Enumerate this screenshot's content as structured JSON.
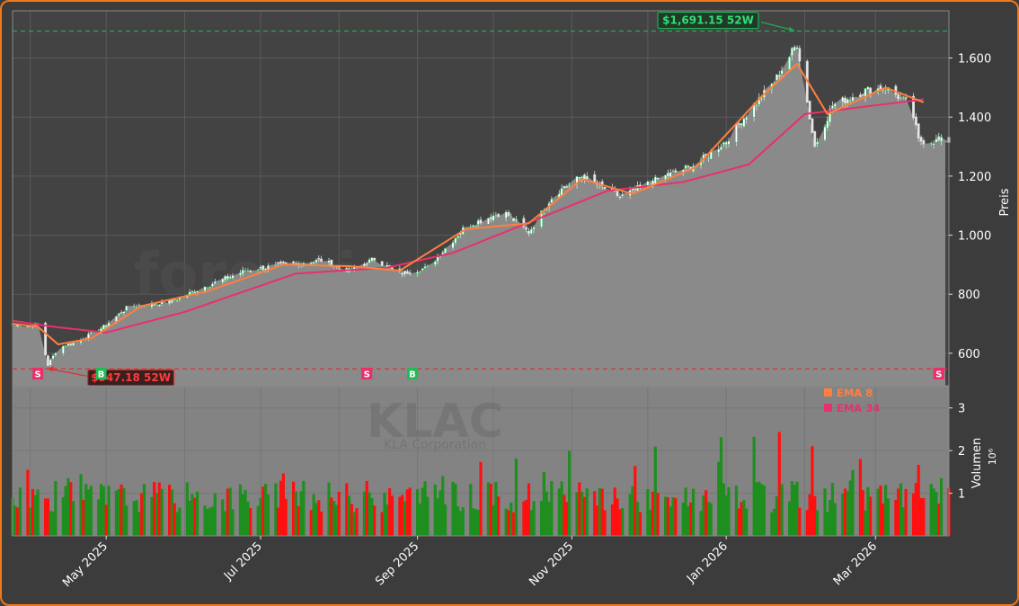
{
  "chart_data": {
    "type": "candlestick",
    "ticker": "KLAC",
    "company": "KLA Corporation",
    "watermark": "forexsignale.trade",
    "x_ticks": [
      "May 2025",
      "Jul 2025",
      "Sep 2025",
      "Nov 2025",
      "Jan 2026",
      "Mar 2026"
    ],
    "x_tick_dates": [
      "2025-05-01",
      "2025-07-01",
      "2025-09-01",
      "2025-11-01",
      "2026-01-01",
      "2026-03-01"
    ],
    "x_range": [
      "2025-03-25",
      "2026-03-30"
    ],
    "price_axis": {
      "label": "Preis",
      "ticks": [
        "600",
        "800",
        "1.000",
        "1.200",
        "1.400",
        "1.600"
      ],
      "tick_values": [
        600,
        800,
        1000,
        1200,
        1400,
        1600
      ],
      "range": [
        490,
        1760
      ]
    },
    "volume_axis": {
      "label": "Volumen",
      "unit": "10^6",
      "ticks": [
        "1",
        "2",
        "3"
      ],
      "tick_values": [
        1,
        2,
        3
      ],
      "range": [
        0,
        3.5
      ]
    },
    "high_52w": {
      "label": "$1,691.15 52W",
      "value": 1691.15,
      "date": "2026-01-29",
      "color": "#22aa55"
    },
    "low_52w": {
      "label": "$547.18 52W",
      "value": 547.18,
      "date": "2025-04-07",
      "color": "#e33"
    },
    "legend": [
      {
        "name": "EMA 8",
        "color": "#ff7f3f"
      },
      {
        "name": "EMA 34",
        "color": "#e8306c"
      }
    ],
    "signals": [
      {
        "label": "S",
        "date": "2025-04-04",
        "color": "#e8306c"
      },
      {
        "label": "B",
        "date": "2025-04-29",
        "color": "#22bb55"
      },
      {
        "label": "S",
        "date": "2025-08-12",
        "color": "#e8306c"
      },
      {
        "label": "B",
        "date": "2025-08-30",
        "color": "#22bb55"
      },
      {
        "label": "S",
        "date": "2026-03-26",
        "color": "#e8306c"
      }
    ],
    "close_series": [
      {
        "date": "2025-03-25",
        "close": 700
      },
      {
        "date": "2025-03-31",
        "close": 690
      },
      {
        "date": "2025-04-04",
        "close": 700
      },
      {
        "date": "2025-04-08",
        "close": 560
      },
      {
        "date": "2025-04-12",
        "close": 620
      },
      {
        "date": "2025-04-20",
        "close": 640
      },
      {
        "date": "2025-04-30",
        "close": 690
      },
      {
        "date": "2025-05-10",
        "close": 760
      },
      {
        "date": "2025-05-25",
        "close": 770
      },
      {
        "date": "2025-06-10",
        "close": 830
      },
      {
        "date": "2025-06-25",
        "close": 880
      },
      {
        "date": "2025-07-10",
        "close": 900
      },
      {
        "date": "2025-07-25",
        "close": 915
      },
      {
        "date": "2025-08-05",
        "close": 880
      },
      {
        "date": "2025-08-15",
        "close": 920
      },
      {
        "date": "2025-08-25",
        "close": 870
      },
      {
        "date": "2025-09-05",
        "close": 890
      },
      {
        "date": "2025-09-20",
        "close": 1030
      },
      {
        "date": "2025-10-05",
        "close": 1080
      },
      {
        "date": "2025-10-15",
        "close": 1010
      },
      {
        "date": "2025-10-25",
        "close": 1140
      },
      {
        "date": "2025-11-05",
        "close": 1200
      },
      {
        "date": "2025-11-20",
        "close": 1130
      },
      {
        "date": "2025-12-05",
        "close": 1190
      },
      {
        "date": "2025-12-20",
        "close": 1240
      },
      {
        "date": "2026-01-01",
        "close": 1320
      },
      {
        "date": "2026-01-10",
        "close": 1420
      },
      {
        "date": "2026-01-20",
        "close": 1520
      },
      {
        "date": "2026-01-29",
        "close": 1650
      },
      {
        "date": "2026-02-05",
        "close": 1300
      },
      {
        "date": "2026-02-12",
        "close": 1440
      },
      {
        "date": "2026-02-25",
        "close": 1490
      },
      {
        "date": "2026-03-05",
        "close": 1500
      },
      {
        "date": "2026-03-15",
        "close": 1440
      },
      {
        "date": "2026-03-18",
        "close": 1320
      },
      {
        "date": "2026-03-30",
        "close": 1320
      }
    ],
    "ema8_series": [
      {
        "date": "2025-03-25",
        "value": 700
      },
      {
        "date": "2025-04-04",
        "value": 690
      },
      {
        "date": "2025-04-12",
        "value": 630
      },
      {
        "date": "2025-04-25",
        "value": 650
      },
      {
        "date": "2025-05-15",
        "value": 760
      },
      {
        "date": "2025-06-10",
        "value": 810
      },
      {
        "date": "2025-07-10",
        "value": 900
      },
      {
        "date": "2025-08-05",
        "value": 895
      },
      {
        "date": "2025-08-25",
        "value": 880
      },
      {
        "date": "2025-09-20",
        "value": 1020
      },
      {
        "date": "2025-10-15",
        "value": 1040
      },
      {
        "date": "2025-11-05",
        "value": 1190
      },
      {
        "date": "2025-11-25",
        "value": 1140
      },
      {
        "date": "2025-12-20",
        "value": 1230
      },
      {
        "date": "2026-01-15",
        "value": 1470
      },
      {
        "date": "2026-01-29",
        "value": 1580
      },
      {
        "date": "2026-02-10",
        "value": 1410
      },
      {
        "date": "2026-03-05",
        "value": 1500
      },
      {
        "date": "2026-03-20",
        "value": 1450
      }
    ],
    "ema34_series": [
      {
        "date": "2025-03-25",
        "value": 710
      },
      {
        "date": "2025-04-10",
        "value": 690
      },
      {
        "date": "2025-05-01",
        "value": 670
      },
      {
        "date": "2025-06-01",
        "value": 740
      },
      {
        "date": "2025-07-15",
        "value": 870
      },
      {
        "date": "2025-08-20",
        "value": 890
      },
      {
        "date": "2025-09-15",
        "value": 940
      },
      {
        "date": "2025-10-20",
        "value": 1060
      },
      {
        "date": "2025-11-15",
        "value": 1150
      },
      {
        "date": "2025-12-15",
        "value": 1180
      },
      {
        "date": "2026-01-10",
        "value": 1240
      },
      {
        "date": "2026-02-01",
        "value": 1410
      },
      {
        "date": "2026-03-01",
        "value": 1440
      },
      {
        "date": "2026-03-20",
        "value": 1460
      }
    ]
  }
}
